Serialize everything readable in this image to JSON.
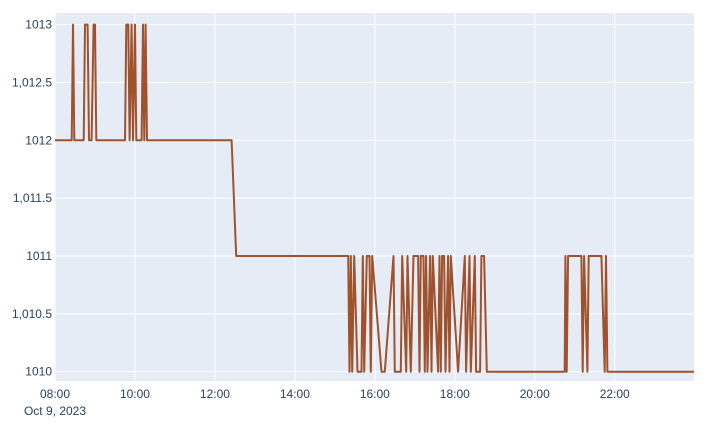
{
  "chart_data": {
    "type": "line",
    "title": "",
    "xlabel": "",
    "ylabel": "",
    "xlim": [
      "2023-10-09 08:00",
      "2023-10-09 23:59"
    ],
    "ylim": [
      1009.92,
      1013.1
    ],
    "x_ticks": [
      {
        "time": "2023-10-09 08:00",
        "label": "08:00",
        "sublabel": "Oct 9, 2023"
      },
      {
        "time": "2023-10-09 10:00",
        "label": "10:00"
      },
      {
        "time": "2023-10-09 12:00",
        "label": "12:00"
      },
      {
        "time": "2023-10-09 14:00",
        "label": "14:00"
      },
      {
        "time": "2023-10-09 16:00",
        "label": "16:00"
      },
      {
        "time": "2023-10-09 18:00",
        "label": "18:00"
      },
      {
        "time": "2023-10-09 20:00",
        "label": "20:00"
      },
      {
        "time": "2023-10-09 22:00",
        "label": "22:00"
      }
    ],
    "y_ticks": [
      {
        "value": 1010,
        "label": "1010"
      },
      {
        "value": 1010.5,
        "label": "1,010.5"
      },
      {
        "value": 1011,
        "label": "1011"
      },
      {
        "value": 1011.5,
        "label": "1,011.5"
      },
      {
        "value": 1012,
        "label": "1012"
      },
      {
        "value": 1012.5,
        "label": "1,012.5"
      },
      {
        "value": 1013,
        "label": "1013"
      }
    ],
    "grid": true,
    "legend": "none",
    "colors": {
      "line": "#a0522d",
      "plot_bg": "#e5ecf6",
      "grid": "#ffffff"
    },
    "series": [
      {
        "x": [
          "2023-10-09 08:00",
          "2023-10-09 08:25",
          "2023-10-09 08:27",
          "2023-10-09 08:29",
          "2023-10-09 08:43",
          "2023-10-09 08:45",
          "2023-10-09 08:49",
          "2023-10-09 08:51",
          "2023-10-09 08:55",
          "2023-10-09 08:58",
          "2023-10-09 09:00",
          "2023-10-09 09:02",
          "2023-10-09 09:45",
          "2023-10-09 09:47",
          "2023-10-09 09:50",
          "2023-10-09 09:52",
          "2023-10-09 09:55",
          "2023-10-09 09:57",
          "2023-10-09 10:00",
          "2023-10-09 10:02",
          "2023-10-09 10:10",
          "2023-10-09 10:12",
          "2023-10-09 10:14",
          "2023-10-09 10:16",
          "2023-10-09 10:18",
          "2023-10-09 12:25",
          "2023-10-09 12:32",
          "2023-10-09 15:20",
          "2023-10-09 15:22",
          "2023-10-09 15:24",
          "2023-10-09 15:26",
          "2023-10-09 15:29",
          "2023-10-09 15:34",
          "2023-10-09 15:40",
          "2023-10-09 15:42",
          "2023-10-09 15:44",
          "2023-10-09 15:48",
          "2023-10-09 15:52",
          "2023-10-09 15:54",
          "2023-10-09 15:56",
          "2023-10-09 16:10",
          "2023-10-09 16:15",
          "2023-10-09 16:28",
          "2023-10-09 16:30",
          "2023-10-09 16:39",
          "2023-10-09 16:41",
          "2023-10-09 16:47",
          "2023-10-09 16:49",
          "2023-10-09 16:54",
          "2023-10-09 16:58",
          "2023-10-09 17:05",
          "2023-10-09 17:07",
          "2023-10-09 17:09",
          "2023-10-09 17:13",
          "2023-10-09 17:15",
          "2023-10-09 17:17",
          "2023-10-09 17:19",
          "2023-10-09 17:23",
          "2023-10-09 17:25",
          "2023-10-09 17:27",
          "2023-10-09 17:35",
          "2023-10-09 17:37",
          "2023-10-09 17:39",
          "2023-10-09 17:41",
          "2023-10-09 17:44",
          "2023-10-09 17:46",
          "2023-10-09 17:50",
          "2023-10-09 17:52",
          "2023-10-09 17:54",
          "2023-10-09 18:05",
          "2023-10-09 18:15",
          "2023-10-09 18:17",
          "2023-10-09 18:22",
          "2023-10-09 18:24",
          "2023-10-09 18:30",
          "2023-10-09 18:32",
          "2023-10-09 18:38",
          "2023-10-09 18:40",
          "2023-10-09 18:44",
          "2023-10-09 18:48",
          "2023-10-09 18:51",
          "2023-10-09 20:45",
          "2023-10-09 20:46",
          "2023-10-09 20:48",
          "2023-10-09 20:50",
          "2023-10-09 21:10",
          "2023-10-09 21:12",
          "2023-10-09 21:14",
          "2023-10-09 21:19",
          "2023-10-09 21:21",
          "2023-10-09 21:23",
          "2023-10-09 21:40",
          "2023-10-09 21:45",
          "2023-10-09 21:47",
          "2023-10-09 21:49",
          "2023-10-09 23:59"
        ],
        "y": [
          1012,
          1012,
          1013,
          1012,
          1012,
          1013,
          1013,
          1012,
          1012,
          1013,
          1013,
          1012,
          1012,
          1013,
          1013,
          1012,
          1013,
          1012,
          1013,
          1012,
          1012,
          1013,
          1012,
          1013,
          1012,
          1012,
          1011,
          1011,
          1010,
          1011,
          1010,
          1011,
          1010,
          1010,
          1011,
          1010,
          1011,
          1011,
          1010,
          1011,
          1010,
          1010,
          1011,
          1010,
          1010,
          1011,
          1010,
          1011,
          1010,
          1011,
          1011,
          1010,
          1011,
          1011,
          1010,
          1011,
          1010,
          1011,
          1010,
          1011,
          1010,
          1011,
          1010,
          1011,
          1011,
          1010,
          1011,
          1010,
          1011,
          1010,
          1011,
          1010,
          1011,
          1010,
          1011,
          1010,
          1010,
          1011,
          1011,
          1010,
          1010,
          1010,
          1011,
          1010,
          1011,
          1011,
          1010,
          1011,
          1010,
          1011,
          1011,
          1011,
          1010,
          1011,
          1010,
          1010
        ]
      }
    ]
  }
}
